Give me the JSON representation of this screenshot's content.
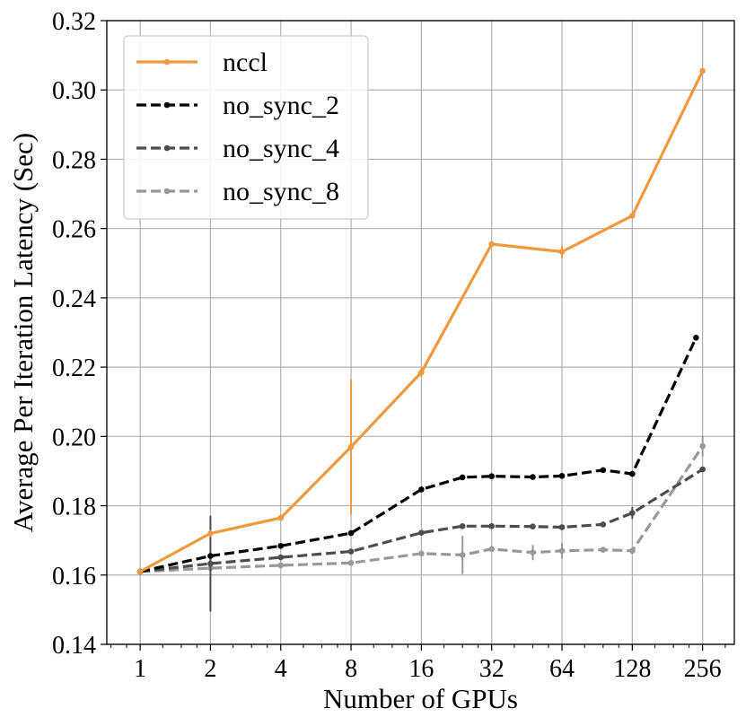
{
  "chart_data": {
    "type": "line",
    "title": "",
    "xlabel": "Number of GPUs",
    "ylabel": "Average Per Iteration Latency (Sec)",
    "xscale": "log2",
    "xlim": [
      0.72,
      350
    ],
    "ylim": [
      0.14,
      0.32
    ],
    "xticks": [
      1,
      2,
      4,
      8,
      16,
      32,
      64,
      128,
      256
    ],
    "xtick_labels": [
      "1",
      "2",
      "4",
      "8",
      "16",
      "32",
      "64",
      "128",
      "256"
    ],
    "yticks": [
      0.14,
      0.16,
      0.18,
      0.2,
      0.22,
      0.24,
      0.26,
      0.28,
      0.3,
      0.32
    ],
    "ytick_labels": [
      "0.14",
      "0.16",
      "0.18",
      "0.20",
      "0.22",
      "0.24",
      "0.26",
      "0.28",
      "0.30",
      "0.32"
    ],
    "grid": true,
    "legend_position": "top-left",
    "series": [
      {
        "name": "nccl",
        "color": "#f0993e",
        "dash": "solid",
        "x": [
          1,
          2,
          4,
          8,
          16,
          32,
          64,
          128,
          256
        ],
        "y": [
          0.161,
          0.172,
          0.1765,
          0.197,
          0.2185,
          0.2555,
          0.2533,
          0.2637,
          0.3055
        ],
        "err": [
          0.0005,
          0.001,
          0.0008,
          0.0195,
          0.0013,
          0.0008,
          0.0018,
          0.0006,
          0.0007
        ]
      },
      {
        "name": "no_sync_2",
        "color": "#000000",
        "dash": "dashed",
        "x": [
          1,
          2,
          4,
          8,
          16,
          24,
          32,
          48,
          64,
          96,
          128,
          240
        ],
        "y": [
          0.161,
          0.1655,
          0.1684,
          0.1721,
          0.1847,
          0.1882,
          0.1885,
          0.1883,
          0.1886,
          0.1903,
          0.1892,
          0.2285
        ],
        "err": [
          0.0004,
          0.0006,
          0.0005,
          0.0005,
          0.0006,
          0.0005,
          0.0005,
          0.0005,
          0.0006,
          0.0005,
          0.0005,
          0.0006
        ]
      },
      {
        "name": "no_sync_4",
        "color": "#4d4d4d",
        "dash": "dashed",
        "x": [
          1,
          2,
          4,
          8,
          16,
          24,
          32,
          48,
          64,
          96,
          128,
          256
        ],
        "y": [
          0.161,
          0.1633,
          0.1651,
          0.1668,
          0.1722,
          0.1741,
          0.1741,
          0.174,
          0.1738,
          0.1746,
          0.1779,
          0.1905
        ],
        "err": [
          0.0004,
          0.0138,
          0.0005,
          0.0005,
          0.0006,
          0.0005,
          0.0005,
          0.0005,
          0.0005,
          0.0005,
          0.0017,
          0.0006
        ]
      },
      {
        "name": "no_sync_8",
        "color": "#999999",
        "dash": "dashed",
        "x": [
          1,
          2,
          4,
          8,
          16,
          24,
          32,
          48,
          64,
          96,
          128,
          256
        ],
        "y": [
          0.161,
          0.162,
          0.1628,
          0.1635,
          0.1662,
          0.1658,
          0.1675,
          0.1665,
          0.167,
          0.1673,
          0.167,
          0.1972
        ],
        "err": [
          0.0004,
          0.0005,
          0.0005,
          0.0005,
          0.0005,
          0.0055,
          0.0006,
          0.0022,
          0.0022,
          0.0008,
          0.0006,
          0.003
        ]
      }
    ]
  }
}
